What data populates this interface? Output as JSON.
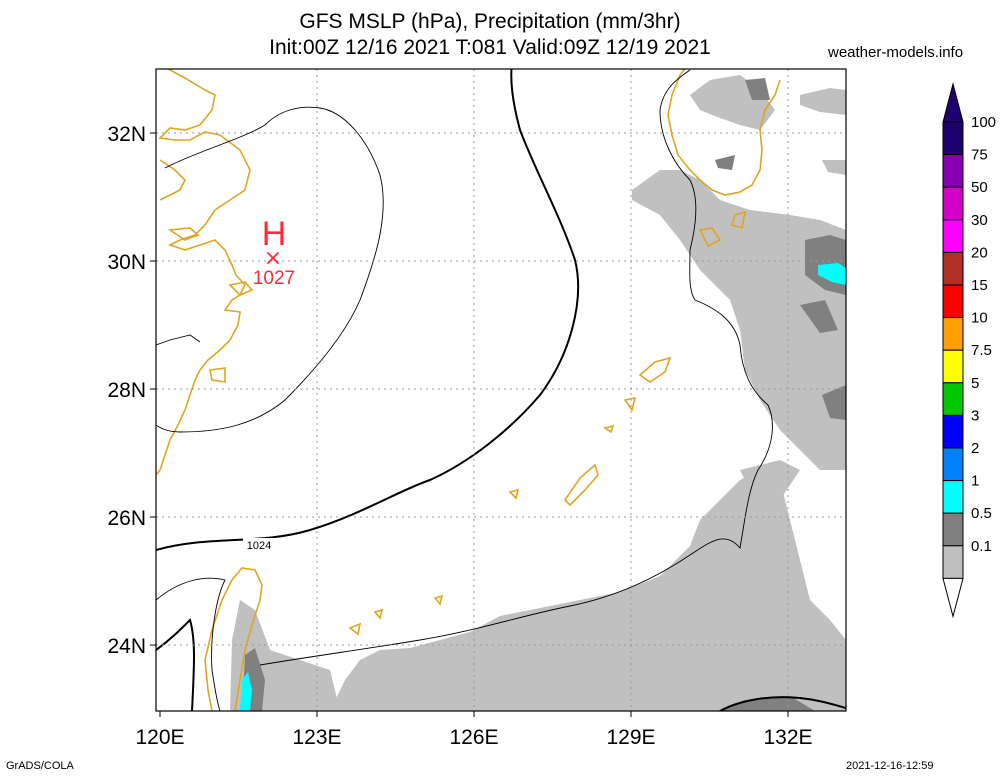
{
  "header": {
    "title_line1": "GFS MSLP (hPa), Precipitation (mm/3hr)",
    "title_line2": "Init:00Z 12/16 2021 T:081 Valid:09Z 12/19 2021",
    "site": "weather-models.info"
  },
  "footer": {
    "credit": "GrADS/COLA",
    "timestamp": "2021-12-16-12:59"
  },
  "map": {
    "lon_labels": [
      "120E",
      "123E",
      "126E",
      "129E",
      "132E"
    ],
    "lat_labels": [
      "32N",
      "30N",
      "28N",
      "26N",
      "24N"
    ],
    "high_pressure": {
      "symbol": "H",
      "marker": "×",
      "value": "1027"
    },
    "isobar_label": "1024"
  },
  "colorbar": {
    "labels": [
      "100",
      "75",
      "50",
      "30",
      "20",
      "15",
      "10",
      "7.5",
      "5",
      "3",
      "2",
      "1",
      "0.5",
      "0.1"
    ],
    "colors": [
      "#1e0070",
      "#8c00b4",
      "#d200c8",
      "#ff00ff",
      "#b03028",
      "#ff0000",
      "#ffa000",
      "#ffff00",
      "#00c800",
      "#0000ff",
      "#0082ff",
      "#00ffff",
      "#808080",
      "#c0c0c0"
    ]
  },
  "colors": {
    "coast": "#e0a520",
    "high": "#ff2a3a",
    "grid": "#9a9a9a"
  }
}
